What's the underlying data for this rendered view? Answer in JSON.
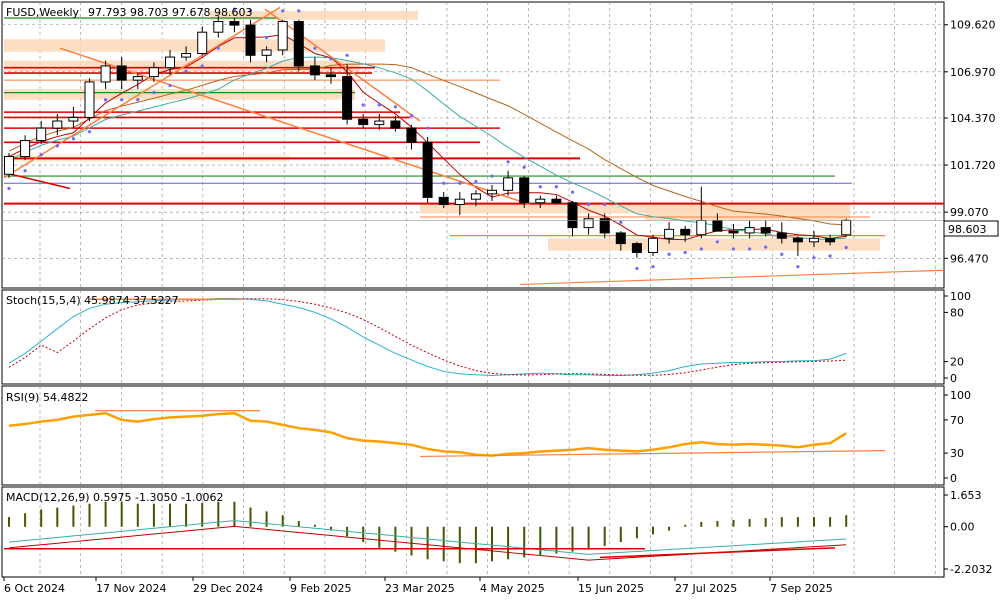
{
  "chart_data": {
    "type": "candlestick",
    "symbol": "FUSD",
    "timeframe": "Weekly",
    "header": {
      "title": "FUSD,Weekly",
      "ohlc": "97.793 98.703 97.678 98.603"
    },
    "current_price": "98.603",
    "price_axis": {
      "ticks": [
        "109.620",
        "106.970",
        "104.370",
        "101.720",
        "99.070",
        "96.470"
      ],
      "ylim": [
        94.8,
        110.9
      ]
    },
    "x_labels": [
      "6 Oct 2024",
      "17 Nov 2024",
      "29 Dec 2024",
      "9 Feb 2025",
      "23 Mar 2025",
      "4 May 2025",
      "15 Jun 2025",
      "27 Jul 2025",
      "7 Sep 2025"
    ],
    "candles": [
      [
        101.2,
        102.4,
        101.0,
        102.2
      ],
      [
        102.2,
        103.4,
        102.0,
        103.1
      ],
      [
        103.1,
        104.2,
        102.9,
        103.8
      ],
      [
        103.8,
        104.6,
        103.4,
        104.2
      ],
      [
        104.2,
        105.0,
        103.8,
        104.4
      ],
      [
        104.4,
        106.6,
        104.2,
        106.4
      ],
      [
        106.4,
        107.6,
        106.0,
        107.3
      ],
      [
        107.3,
        107.8,
        106.0,
        106.5
      ],
      [
        106.5,
        106.9,
        106.0,
        106.7
      ],
      [
        106.7,
        107.5,
        106.4,
        107.2
      ],
      [
        107.2,
        108.2,
        106.8,
        107.8
      ],
      [
        107.8,
        108.4,
        107.6,
        108.0
      ],
      [
        108.0,
        109.5,
        107.9,
        109.2
      ],
      [
        109.2,
        110.1,
        108.9,
        109.8
      ],
      [
        109.8,
        110.0,
        109.2,
        109.6
      ],
      [
        109.6,
        109.9,
        107.5,
        107.9
      ],
      [
        107.9,
        108.4,
        107.5,
        108.2
      ],
      [
        108.2,
        109.9,
        107.9,
        109.8
      ],
      [
        109.8,
        109.9,
        107.0,
        107.3
      ],
      [
        107.3,
        107.8,
        106.5,
        106.8
      ],
      [
        106.8,
        107.2,
        106.3,
        106.7
      ],
      [
        106.7,
        107.4,
        104.0,
        104.3
      ],
      [
        104.3,
        104.6,
        103.8,
        104.0
      ],
      [
        104.0,
        104.6,
        103.7,
        104.2
      ],
      [
        104.2,
        104.5,
        103.6,
        103.8
      ],
      [
        103.8,
        104.0,
        102.6,
        103.0
      ],
      [
        103.0,
        103.3,
        99.6,
        99.9
      ],
      [
        99.9,
        100.2,
        99.3,
        99.5
      ],
      [
        99.5,
        100.2,
        98.9,
        99.8
      ],
      [
        99.8,
        100.3,
        99.4,
        100.1
      ],
      [
        100.1,
        100.6,
        99.7,
        100.3
      ],
      [
        100.3,
        101.4,
        100.0,
        101.0
      ],
      [
        101.0,
        101.1,
        99.3,
        99.6
      ],
      [
        99.6,
        100.0,
        99.3,
        99.8
      ],
      [
        99.8,
        100.0,
        99.5,
        99.6
      ],
      [
        99.6,
        99.7,
        97.7,
        98.2
      ],
      [
        98.2,
        99.0,
        97.8,
        98.7
      ],
      [
        98.7,
        99.0,
        97.6,
        97.9
      ],
      [
        97.9,
        98.0,
        96.9,
        97.3
      ],
      [
        97.3,
        97.4,
        96.5,
        96.8
      ],
      [
        96.8,
        97.8,
        96.6,
        97.6
      ],
      [
        97.6,
        98.5,
        97.3,
        98.1
      ],
      [
        98.1,
        98.3,
        97.4,
        97.8
      ],
      [
        97.8,
        100.5,
        97.6,
        98.6
      ],
      [
        98.6,
        99.0,
        98.0,
        98.0
      ],
      [
        98.0,
        98.4,
        97.6,
        97.9
      ],
      [
        97.9,
        98.6,
        97.6,
        98.2
      ],
      [
        98.2,
        98.6,
        97.7,
        97.9
      ],
      [
        97.9,
        98.5,
        97.3,
        97.6
      ],
      [
        97.6,
        97.7,
        96.6,
        97.4
      ],
      [
        97.4,
        98.0,
        97.1,
        97.6
      ],
      [
        97.6,
        97.8,
        97.2,
        97.4
      ],
      [
        97.793,
        98.703,
        97.678,
        98.603
      ]
    ],
    "stochastic": {
      "label": "Stoch(15,5,4) 45.9874 37.5227",
      "levels": [
        "100",
        "80",
        "20",
        "0"
      ]
    },
    "rsi": {
      "label": "RSI(9) 54.4822",
      "levels": [
        "100",
        "70",
        "30",
        "0"
      ]
    },
    "macd": {
      "label": "MACD(12,26,9) 0.5975 -1.3050 -1.0062",
      "levels": [
        "1.653",
        "0.00",
        "-2.2032"
      ]
    },
    "colors": {
      "grid": "#8c8c8c",
      "candle_bull": "#ffffff",
      "candle_bear": "#000000",
      "red_lines": "#e00000",
      "green_lines": "#1e8a1e",
      "orange_lines": "#ff7f3f",
      "zones": "#fbd9b8",
      "zones_yellow": "#fbeec9",
      "ma_teal": "#3aaea6",
      "ma_brown": "#b5651d",
      "ma_red": "#c00000",
      "rsi_line": "#ffa000",
      "stoch_main": "#2bb4c8",
      "macd_hist": "#3c5a00",
      "psar": "#6a6aff"
    }
  }
}
